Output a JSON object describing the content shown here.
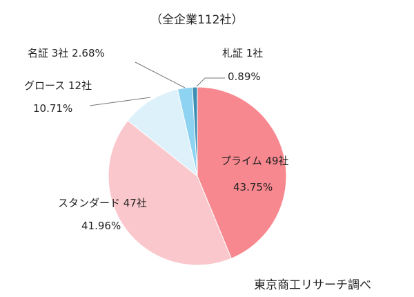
{
  "chart_data": {
    "type": "pie",
    "title": "（全企業112社）",
    "source": "東京商工リサーチ調べ",
    "start": "top",
    "direction": "clockwise",
    "slices": [
      {
        "label": "プライム 49社",
        "count": 49,
        "value": 43.75,
        "pct": "43.75%",
        "color": "#F8888F"
      },
      {
        "label": "スタンダード 47社",
        "count": 47,
        "value": 41.96,
        "pct": "41.96%",
        "color": "#FAC8CC"
      },
      {
        "label": "グロース 12社",
        "count": 12,
        "value": 10.71,
        "pct": "10.71%",
        "color": "#DDF1FB"
      },
      {
        "label": "名証 3社",
        "count": 3,
        "value": 2.68,
        "pct": "2.68%",
        "color": "#8ED3F2"
      },
      {
        "label": "札証 1社",
        "count": 1,
        "value": 0.89,
        "pct": "0.89%",
        "color": "#3E8FB5"
      }
    ]
  }
}
